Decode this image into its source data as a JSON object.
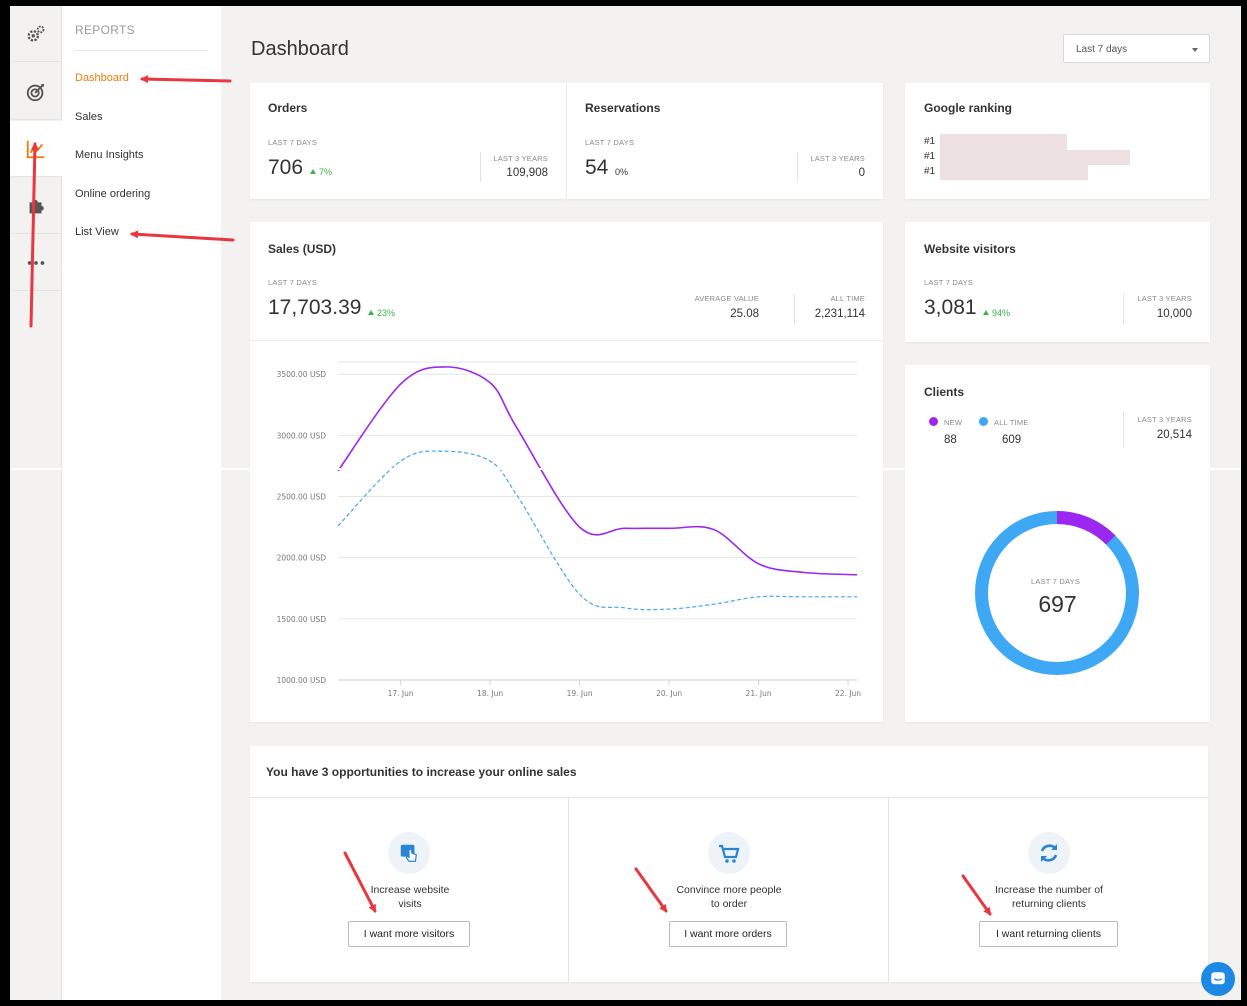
{
  "nav": {
    "section_title": "REPORTS",
    "items": [
      {
        "label": "Dashboard",
        "active": true
      },
      {
        "label": "Sales",
        "active": false
      },
      {
        "label": "Menu Insights",
        "active": false
      },
      {
        "label": "Online ordering",
        "active": false
      },
      {
        "label": "List View",
        "active": false
      }
    ]
  },
  "header": {
    "title": "Dashboard",
    "range_selected": "Last 7 days"
  },
  "orders": {
    "title": "Orders",
    "period_label": "LAST 7 DAYS",
    "value": "706",
    "delta": "7%",
    "alt_label": "LAST 3 YEARS",
    "alt_value": "109,908"
  },
  "reservations": {
    "title": "Reservations",
    "period_label": "LAST 7 DAYS",
    "value": "54",
    "delta": "0%",
    "alt_label": "LAST 3 YEARS",
    "alt_value": "0"
  },
  "google": {
    "title": "Google ranking",
    "ranks": [
      "#1",
      "#1",
      "#1"
    ]
  },
  "sales": {
    "title": "Sales (USD)",
    "period_label": "LAST 7 DAYS",
    "value": "17,703.39",
    "delta": "23%",
    "avg_label": "AVERAGE VALUE",
    "avg_value": "25.08",
    "all_label": "ALL TIME",
    "all_value": "2,231,114"
  },
  "visitors": {
    "title": "Website visitors",
    "period_label": "LAST 7 DAYS",
    "value": "3,081",
    "delta": "94%",
    "alt_label": "LAST 3 YEARS",
    "alt_value": "10,000"
  },
  "clients": {
    "title": "Clients",
    "new_label": "NEW",
    "new_value": "88",
    "all_label": "ALL TIME",
    "all_value": "609",
    "alt_label": "LAST 3 YEARS",
    "alt_value": "20,514",
    "donut_label": "LAST 7 DAYS",
    "donut_value": "697",
    "new_fraction": 0.126
  },
  "opportunities": {
    "title": "You have 3 opportunities to increase your online sales",
    "items": [
      {
        "text_1": "Increase website",
        "text_2": "visits",
        "button": "I want more visitors",
        "icon": "touch-icon"
      },
      {
        "text_1": "Convince more people",
        "text_2": "to order",
        "button": "I want more orders",
        "icon": "cart-icon"
      },
      {
        "text_1": "Increase the number of",
        "text_2": "returning clients",
        "button": "I want returning clients",
        "icon": "refresh-icon"
      }
    ]
  },
  "colors": {
    "accent": "#f07a0c",
    "positive": "#3cb24a",
    "series_current": "#9b27f0",
    "series_previous": "#3ea8f5",
    "annotation_arrow": "#e8373e"
  },
  "chart_data": {
    "type": "line",
    "categories": [
      "17. Jun",
      "18. Jun",
      "19. Jun",
      "20. Jun",
      "21. Jun",
      "22. Jun"
    ],
    "y_ticks": [
      "1000.00 USD",
      "1500.00 USD",
      "2000.00 USD",
      "2500.00 USD",
      "3000.00 USD",
      "3500.00 USD"
    ],
    "ylim": [
      1000,
      3600
    ],
    "x": [
      16.3,
      17,
      17.5,
      18,
      18.3,
      19,
      19.5,
      20,
      20.5,
      21,
      21.5,
      22.1
    ],
    "series": [
      {
        "values": [
          2710,
          3420,
          3560,
          3430,
          3060,
          2250,
          2240,
          2240,
          2230,
          1950,
          1880,
          1860
        ],
        "style": "solid"
      },
      {
        "values": [
          2260,
          2790,
          2870,
          2790,
          2510,
          1700,
          1590,
          1580,
          1620,
          1680,
          1680,
          1680
        ],
        "style": "dashed"
      }
    ]
  }
}
